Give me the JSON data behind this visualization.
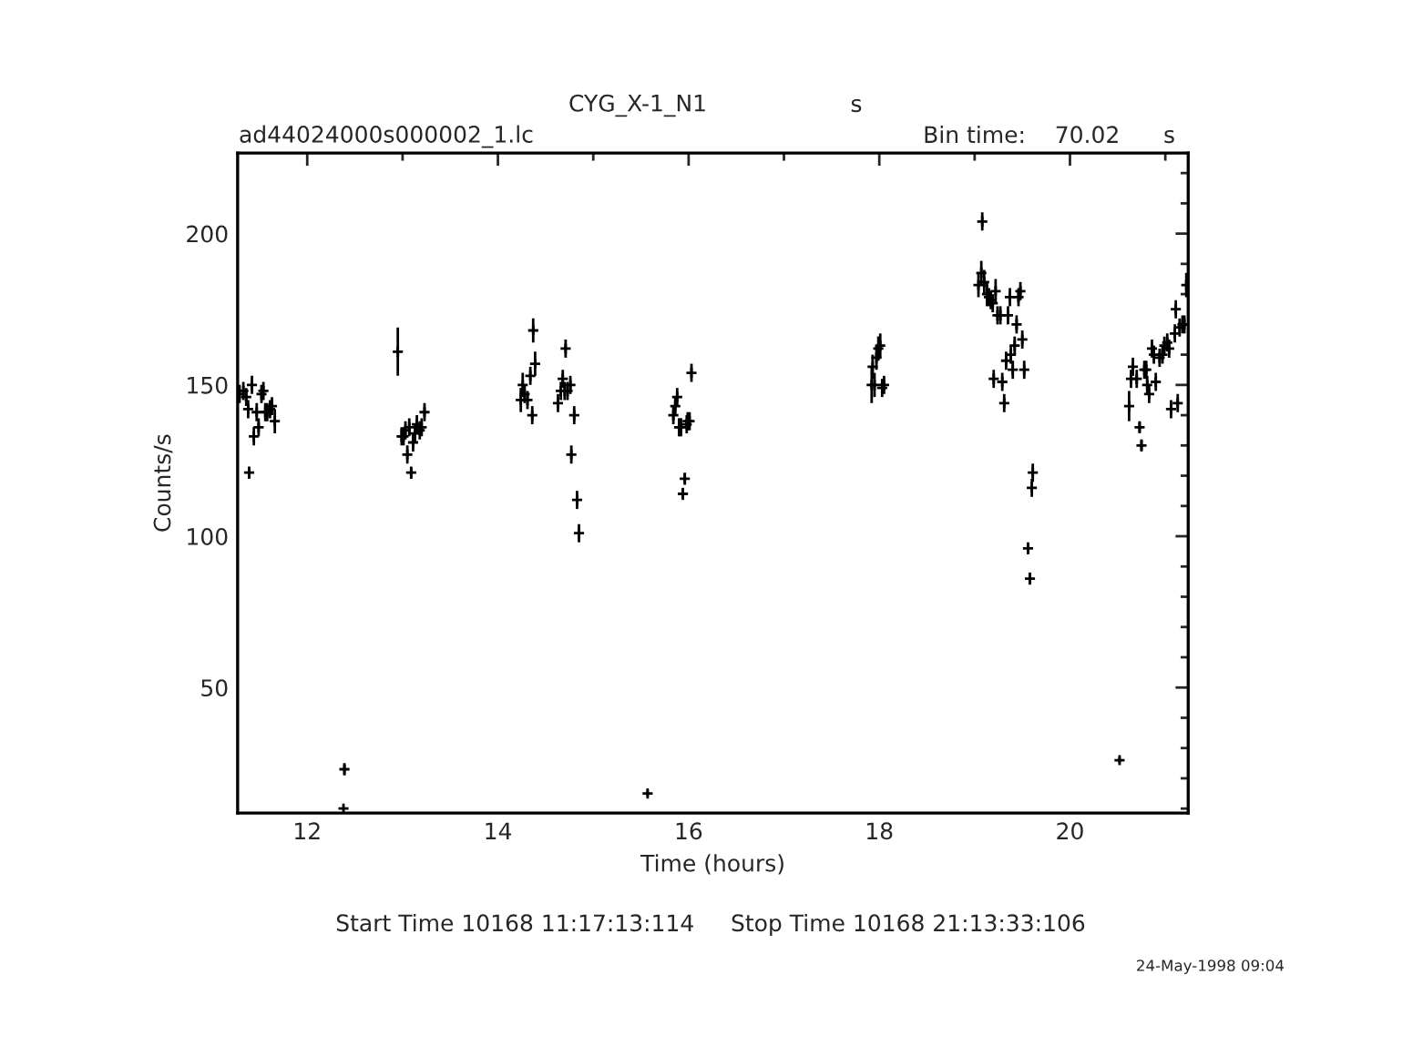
{
  "chart_data": {
    "type": "scatter",
    "title": "CYG_X-1_N1",
    "xlabel": "Time (hours)",
    "ylabel": "Counts/s",
    "annotations": [
      "s",
      "ad44024000s000002_1.lc",
      "Bin time:    70.02      s",
      "Start Time 10168 11:17:13:114     Stop Time 10168 21:13:33:106",
      "24-May-1998 09:04"
    ],
    "xlim": [
      11.27,
      21.24
    ],
    "ylim": [
      8.5,
      226.6
    ],
    "xticks": [
      12,
      {
        "value": 13,
        "label": null
      },
      14,
      {
        "value": 15,
        "label": null
      },
      16,
      {
        "value": 17,
        "label": null
      },
      18,
      {
        "value": 19,
        "label": null
      },
      20,
      {
        "value": 21,
        "label": null
      }
    ],
    "yticks": [
      {
        "value": 10,
        "label": null
      },
      {
        "value": 20,
        "label": null
      },
      {
        "value": 30,
        "label": null
      },
      {
        "value": 40,
        "label": null
      },
      50,
      {
        "value": 60,
        "label": null
      },
      {
        "value": 70,
        "label": null
      },
      {
        "value": 80,
        "label": null
      },
      {
        "value": 90,
        "label": null
      },
      100,
      {
        "value": 110,
        "label": null
      },
      {
        "value": 120,
        "label": null
      },
      {
        "value": 130,
        "label": null
      },
      {
        "value": 140,
        "label": null
      },
      150,
      {
        "value": 160,
        "label": null
      },
      {
        "value": 170,
        "label": null
      },
      {
        "value": 180,
        "label": null
      },
      {
        "value": 190,
        "label": null
      },
      200,
      {
        "value": 210,
        "label": null
      },
      {
        "value": 220,
        "label": null
      }
    ],
    "grid": false,
    "legend": false,
    "marker": "cross",
    "series": [
      {
        "color": "#000000",
        "x": [
          11.29,
          11.33,
          11.36,
          11.38,
          11.42,
          11.39,
          11.44,
          11.47,
          11.49,
          11.52,
          11.54,
          11.56,
          11.58,
          11.61,
          11.63,
          11.66,
          12.39,
          12.38,
          12.95,
          12.99,
          13.01,
          13.03,
          13.05,
          13.07,
          13.09,
          13.11,
          13.13,
          13.15,
          13.18,
          13.2,
          13.23,
          14.24,
          14.26,
          14.28,
          14.31,
          14.34,
          14.36,
          14.37,
          14.39,
          14.63,
          14.66,
          14.68,
          14.7,
          14.71,
          14.73,
          14.76,
          14.77,
          14.8,
          14.83,
          14.85,
          15.57,
          15.84,
          15.86,
          15.88,
          15.9,
          15.92,
          15.94,
          15.96,
          15.98,
          15.99,
          16.01,
          16.03,
          17.92,
          17.93,
          17.95,
          17.97,
          17.99,
          18.01,
          18.03,
          18.05,
          19.04,
          19.07,
          19.08,
          19.1,
          19.13,
          19.15,
          19.17,
          19.19,
          19.2,
          19.22,
          19.24,
          19.27,
          19.29,
          19.31,
          19.33,
          19.35,
          19.37,
          19.38,
          19.4,
          19.42,
          19.44,
          19.46,
          19.48,
          19.5,
          19.52,
          19.56,
          19.58,
          19.6,
          19.61,
          20.52,
          20.62,
          20.64,
          20.66,
          20.7,
          20.73,
          20.75,
          20.78,
          20.8,
          20.81,
          20.83,
          20.86,
          20.88,
          20.9,
          20.94,
          20.97,
          20.99,
          21.02,
          21.04,
          21.06,
          21.1,
          21.11,
          21.13,
          21.15,
          21.18,
          21.2,
          21.22
        ],
        "values": [
          147,
          148,
          146,
          142,
          150,
          121,
          133,
          141,
          136,
          147,
          148,
          141,
          141,
          142,
          143,
          138,
          23,
          10,
          161,
          133,
          133,
          135,
          127,
          136,
          121,
          131,
          134,
          137,
          135,
          136,
          141,
          145,
          150,
          147,
          145,
          153,
          140,
          168,
          157,
          144,
          148,
          152,
          148,
          162,
          148,
          150,
          127,
          140,
          112,
          101,
          15,
          140,
          143,
          146,
          136,
          136,
          114,
          119,
          137,
          138,
          138,
          154,
          150,
          156,
          150,
          159,
          162,
          163,
          149,
          150,
          183,
          187,
          204,
          184,
          180,
          179,
          178,
          177,
          152,
          181,
          173,
          173,
          151,
          144,
          158,
          173,
          179,
          160,
          155,
          163,
          170,
          179,
          181,
          165,
          155,
          96,
          86,
          116,
          121,
          26,
          143,
          152,
          156,
          152,
          136,
          130,
          155,
          155,
          150,
          147,
          162,
          160,
          151,
          159,
          160,
          163,
          164,
          162,
          142,
          167,
          175,
          144,
          169,
          170,
          170,
          183
        ],
        "errors": [
          3,
          3,
          3,
          3,
          3,
          2,
          3,
          3,
          3,
          3,
          3,
          3,
          3,
          3,
          3,
          4,
          2,
          null,
          8,
          3,
          3,
          3,
          3,
          3,
          2,
          3,
          3,
          3,
          3,
          3,
          3,
          4,
          4,
          3,
          3,
          3,
          3,
          4,
          4,
          3,
          3,
          3,
          3,
          3,
          3,
          3,
          3,
          3,
          3,
          3,
          1,
          3,
          3,
          3,
          3,
          3,
          2,
          2,
          3,
          3,
          3,
          3,
          6,
          4,
          4,
          4,
          4,
          4,
          3,
          3,
          4,
          4,
          3,
          4,
          4,
          3,
          3,
          3,
          3,
          4,
          3,
          3,
          3,
          3,
          3,
          3,
          3,
          3,
          3,
          3,
          3,
          3,
          3,
          3,
          3,
          2,
          2,
          3,
          3,
          1,
          5,
          3,
          3,
          3,
          2,
          2,
          3,
          3,
          3,
          3,
          3,
          3,
          3,
          3,
          3,
          3,
          3,
          3,
          3,
          3,
          3,
          3,
          3,
          3,
          3,
          4
        ],
        "xerrors": [
          0.01,
          0.01,
          0.01,
          0.01,
          0.01,
          0.01,
          0.01,
          0.01,
          0.01,
          0.01,
          0.01,
          0.01,
          0.01,
          0.01,
          0.01,
          0.01,
          0.01,
          0.01,
          0.01,
          0.01,
          0.01,
          0.01,
          0.01,
          0.01,
          0.01,
          0.01,
          0.01,
          0.01,
          0.01,
          0.01,
          0.01,
          0.01,
          0.01,
          0.01,
          0.01,
          0.01,
          0.01,
          0.01,
          0.01,
          0.01,
          0.01,
          0.01,
          0.01,
          0.01,
          0.01,
          0.01,
          0.01,
          0.01,
          0.01,
          0.01,
          0.01,
          0.01,
          0.01,
          0.01,
          0.01,
          0.01,
          0.01,
          0.01,
          0.01,
          0.01,
          0.01,
          0.01,
          0.01,
          0.01,
          0.01,
          0.01,
          0.01,
          0.01,
          0.01,
          0.01,
          0.01,
          0.01,
          0.01,
          0.01,
          0.01,
          0.01,
          0.01,
          0.01,
          0.01,
          0.01,
          0.01,
          0.01,
          0.01,
          0.01,
          0.01,
          0.01,
          0.01,
          0.01,
          0.01,
          0.01,
          0.01,
          0.01,
          0.01,
          0.01,
          0.01,
          0.01,
          0.01,
          0.01,
          0.01,
          0.01,
          0.01,
          0.01,
          0.01,
          0.01,
          0.01,
          0.01,
          0.01,
          0.01,
          0.01,
          0.01,
          0.01,
          0.01,
          0.01,
          0.01,
          0.01,
          0.01,
          0.01,
          0.01,
          0.01,
          0.01,
          0.01,
          0.01,
          0.01,
          0.01,
          0.01,
          0.01
        ]
      }
    ]
  }
}
